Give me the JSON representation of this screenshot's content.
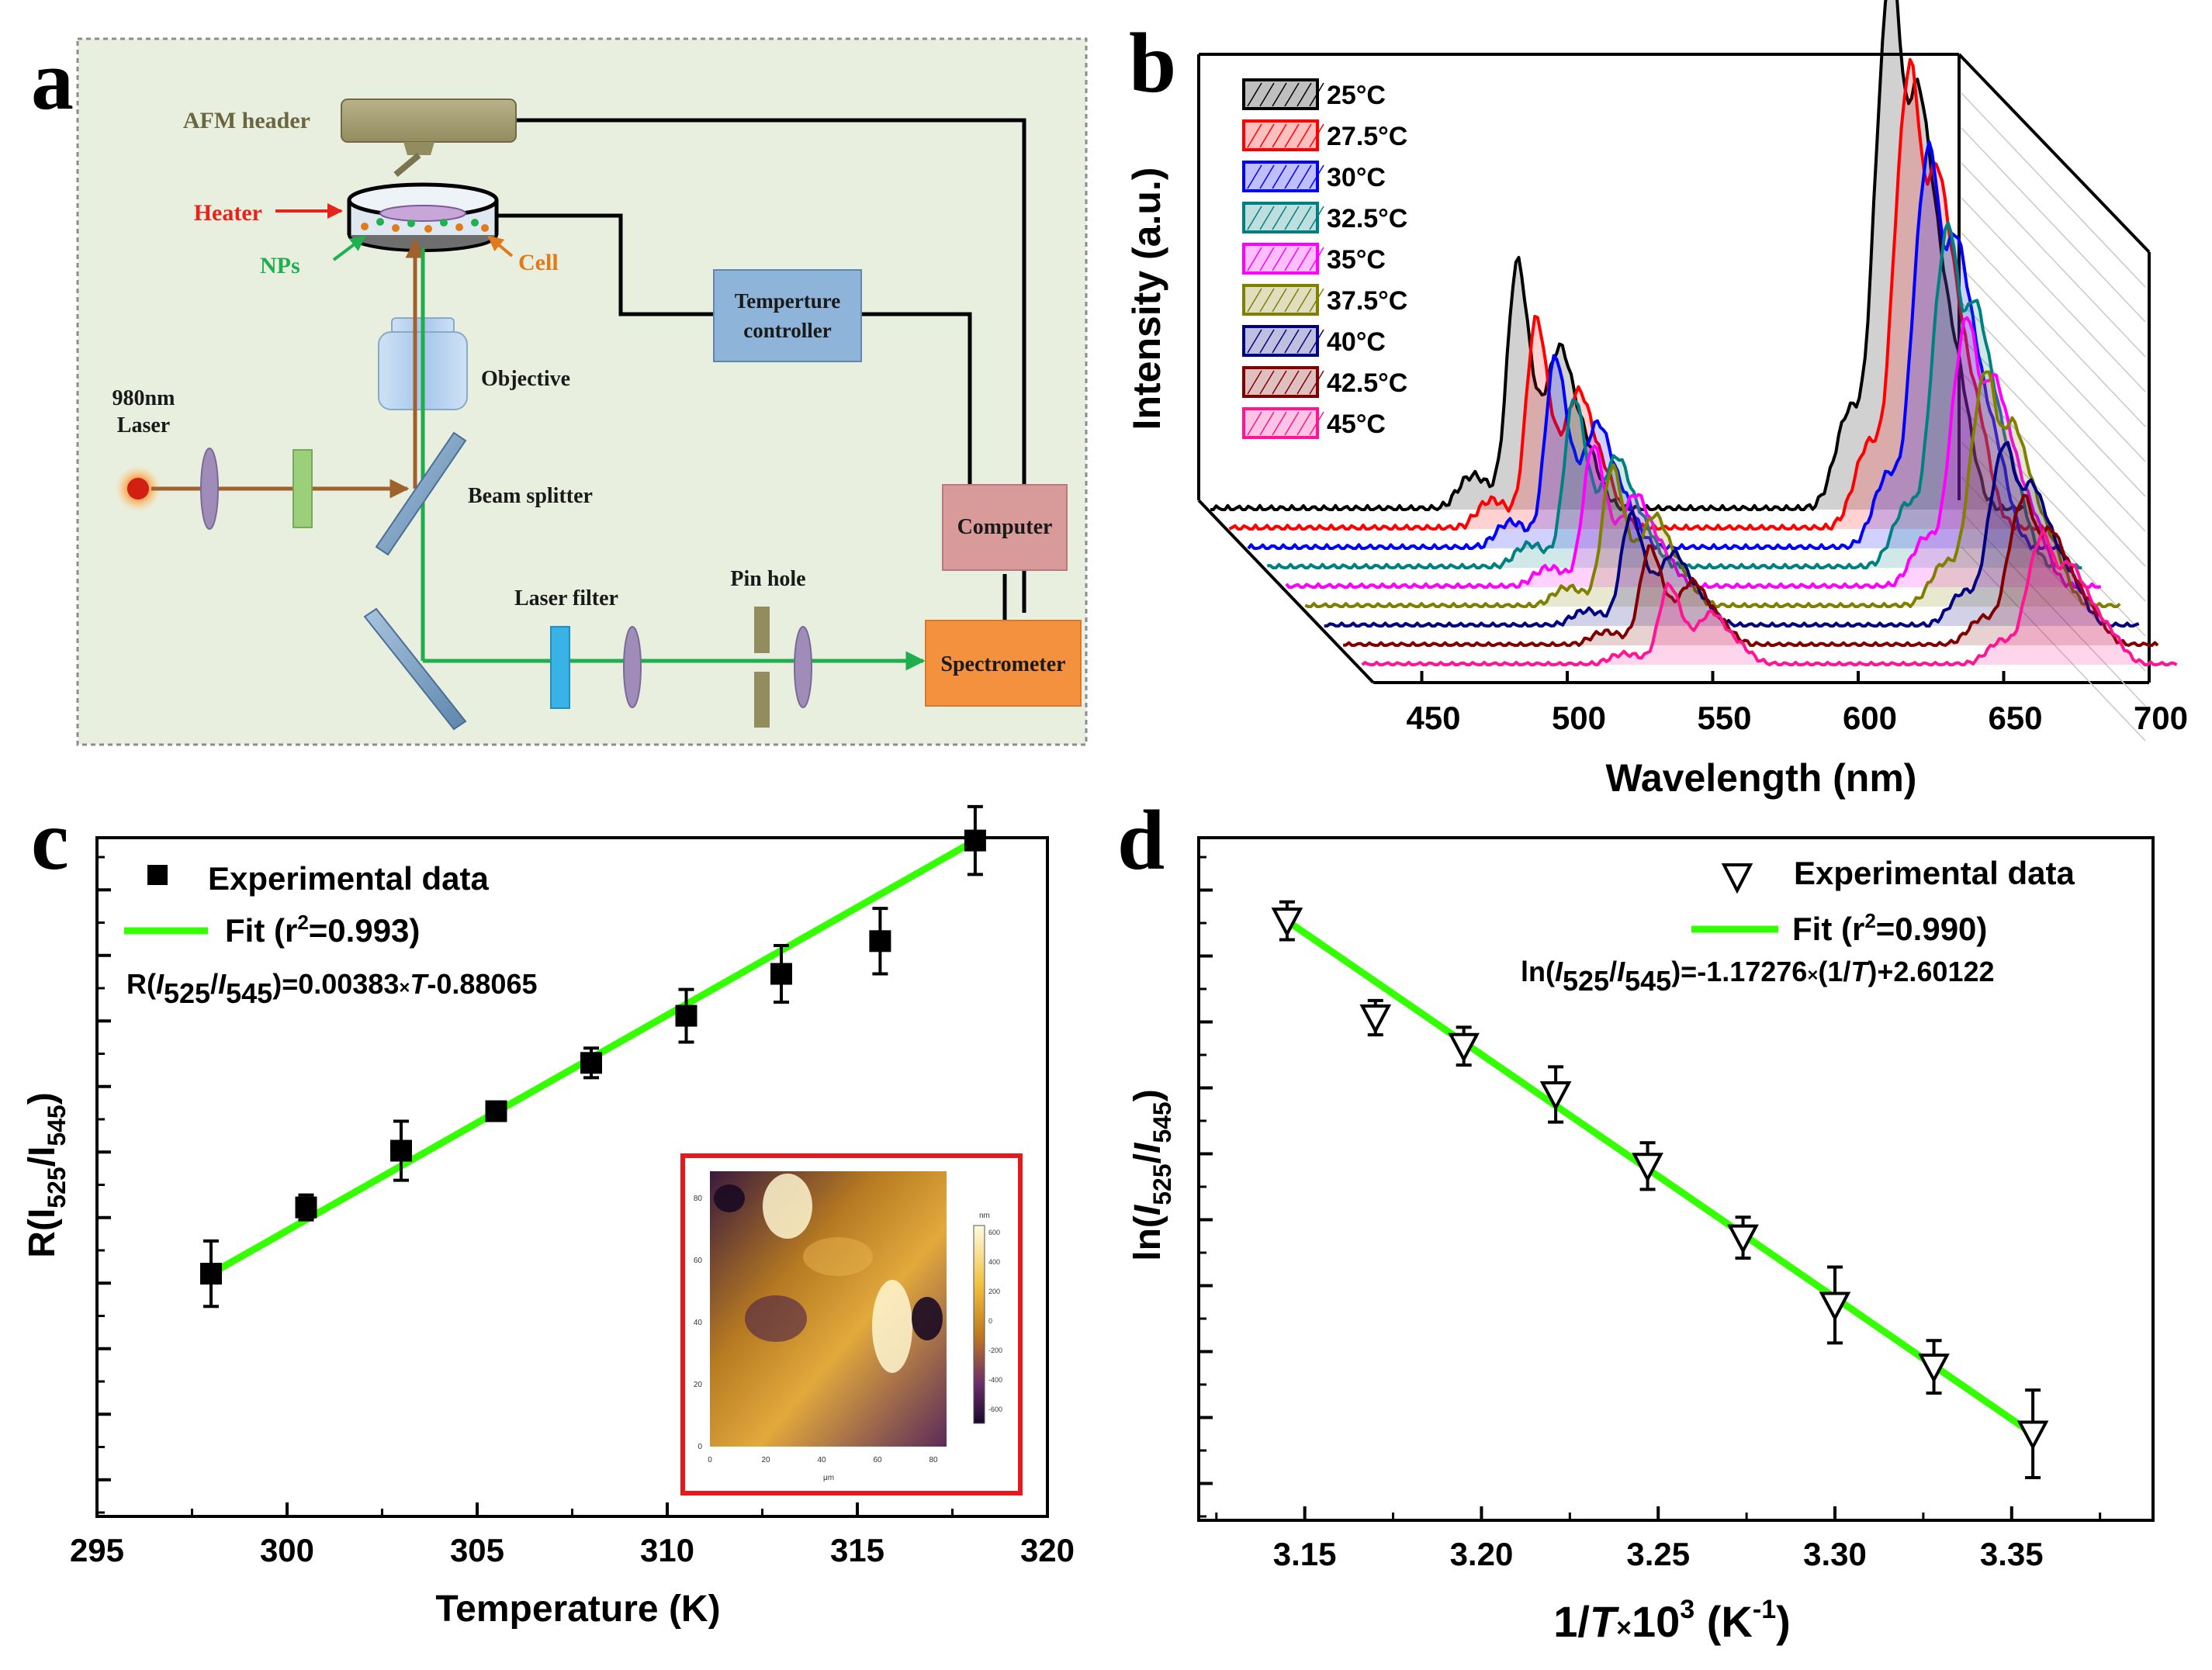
{
  "panel_letters": {
    "a": "a",
    "b": "b",
    "c": "c",
    "d": "d"
  },
  "colors": {
    "schematic_bg": "#e9efdf",
    "green_beam": "#1fae4b",
    "brown_beam": "#a0622d",
    "fit_line": "#33ff00",
    "heater_red": "#e8231b",
    "nps_green": "#1fb14f",
    "cell_orange": "#e07a1b",
    "inset_border": "#e41a1c"
  },
  "schematic": {
    "afm_header": "AFM header",
    "heater": "Heater",
    "nps": "NPs",
    "cell": "Cell",
    "temp_controller_line1": "Temperture",
    "temp_controller_line2": "controller",
    "objective": "Objective",
    "laser_line1": "980nm",
    "laser_line2": "Laser",
    "beam_splitter": "Beam splitter",
    "computer": "Computer",
    "laser_filter": "Laser filter",
    "pin_hole": "Pin hole",
    "spectrometer": "Spectrometer"
  },
  "chart_data": [
    {
      "panel": "b",
      "type": "line",
      "title": "",
      "xlabel": "Wavelength (nm)",
      "ylabel": "Intensity (a.u.)",
      "xlim": [
        420,
        700
      ],
      "xticks": [
        "450",
        "500",
        "550",
        "600",
        "650",
        "700"
      ],
      "waterfall": true,
      "series": [
        {
          "name": "25°C",
          "color": "#000000",
          "peak_green_nm": 525,
          "peak_red_nm": 655,
          "green_rel": 0.56,
          "red_rel": 1.0
        },
        {
          "name": "27.5°C",
          "color": "#ff0000",
          "peak_green_nm": 525,
          "peak_red_nm": 655,
          "green_rel": 0.5,
          "red_rel": 0.9
        },
        {
          "name": "30°C",
          "color": "#0000ff",
          "peak_green_nm": 525,
          "peak_red_nm": 655,
          "green_rel": 0.48,
          "red_rel": 0.82
        },
        {
          "name": "32.5°C",
          "color": "#008080",
          "peak_green_nm": 525,
          "peak_red_nm": 655,
          "green_rel": 0.45,
          "red_rel": 0.74
        },
        {
          "name": "35°C",
          "color": "#ff00ff",
          "peak_green_nm": 525,
          "peak_red_nm": 655,
          "green_rel": 0.4,
          "red_rel": 0.62
        },
        {
          "name": "37.5°C",
          "color": "#808000",
          "peak_green_nm": 525,
          "peak_red_nm": 655,
          "green_rel": 0.42,
          "red_rel": 0.58
        },
        {
          "name": "40°C",
          "color": "#000080",
          "peak_green_nm": 525,
          "peak_red_nm": 655,
          "green_rel": 0.36,
          "red_rel": 0.48
        },
        {
          "name": "42.5°C",
          "color": "#800000",
          "peak_green_nm": 525,
          "peak_red_nm": 655,
          "green_rel": 0.34,
          "red_rel": 0.42
        },
        {
          "name": "45°C",
          "color": "#ff1493",
          "peak_green_nm": 525,
          "peak_red_nm": 655,
          "green_rel": 0.3,
          "red_rel": 0.4
        }
      ]
    },
    {
      "panel": "c",
      "type": "scatter",
      "title": "",
      "xlabel": "Temperature (K)",
      "ylabel_main": "R(I",
      "ylabel_sub1": "525",
      "ylabel_mid": "/I",
      "ylabel_sub2": "545",
      "ylabel_end": ")",
      "xlim": [
        295,
        320
      ],
      "ylim": [
        0.2,
        0.37
      ],
      "xticks": [
        "295",
        "300",
        "305",
        "310",
        "315",
        "320"
      ],
      "legend_marker": "Experimental data",
      "legend_fit": "Fit (r",
      "legend_fit_sup": "2",
      "legend_fit_end": "=0.993)",
      "equation_a": "R(",
      "equation_b": "I",
      "equation_c": "525",
      "equation_d": "/",
      "equation_e": "I",
      "equation_f": "545",
      "equation_g": ")=0.00383",
      "equation_h": "×",
      "equation_i": "T",
      "equation_j": "-0.88065",
      "fit": {
        "slope": 0.00383,
        "intercept": -0.88065
      },
      "points": [
        {
          "x": 298.0,
          "y": 0.2608,
          "err": 0.0082
        },
        {
          "x": 300.5,
          "y": 0.2774,
          "err": 0.0031
        },
        {
          "x": 303.0,
          "y": 0.2916,
          "err": 0.0074
        },
        {
          "x": 305.5,
          "y": 0.3015,
          "err": 0.0022
        },
        {
          "x": 308.0,
          "y": 0.3136,
          "err": 0.0037
        },
        {
          "x": 310.5,
          "y": 0.3254,
          "err": 0.0066
        },
        {
          "x": 313.0,
          "y": 0.3359,
          "err": 0.0071
        },
        {
          "x": 315.6,
          "y": 0.3441,
          "err": 0.0082
        },
        {
          "x": 318.1,
          "y": 0.3693,
          "err": 0.0085
        }
      ],
      "inset": {
        "x_ticks": [
          "0",
          "20",
          "40",
          "60",
          "80"
        ],
        "y_ticks": [
          "0",
          "20",
          "40",
          "60",
          "80"
        ],
        "x_unit": "μm",
        "scale_unit": "nm",
        "scale_ticks": [
          "600",
          "400",
          "200",
          "0",
          "-200",
          "-400",
          "-600"
        ]
      }
    },
    {
      "panel": "d",
      "type": "scatter",
      "title": "",
      "xlabel_a": "1/",
      "xlabel_b": "T",
      "xlabel_c": "×",
      "xlabel_d": "10",
      "xlabel_e": "3",
      "xlabel_f": " (K",
      "xlabel_g": "-1",
      "xlabel_h": ")",
      "ylabel_a": "ln(",
      "ylabel_b": "I",
      "ylabel_c": "525",
      "ylabel_d": "/",
      "ylabel_e": "I",
      "ylabel_f": "545",
      "ylabel_g": ")",
      "xlim": [
        3.12,
        3.39
      ],
      "ylim": [
        -1.43,
        -1.04
      ],
      "xticks": [
        "3.15",
        "3.20",
        "3.25",
        "3.30",
        "3.35"
      ],
      "legend_marker": "Experimental data",
      "legend_fit": "Fit (r",
      "legend_fit_sup": "2",
      "legend_fit_end": "=0.990)",
      "equation_a": "ln(",
      "equation_b": "I",
      "equation_c": "525",
      "equation_d": "/",
      "equation_e": "I",
      "equation_f": "545",
      "equation_g": ")=-1.17276",
      "equation_h": "×",
      "equation_i": "(1/",
      "equation_j": "T",
      "equation_k": ")+2.60122",
      "fit": {
        "slope": -1.17276,
        "intercept": 2.60122
      },
      "points": [
        {
          "x": 3.145,
          "y": -1.0875,
          "err": 0.0108
        },
        {
          "x": 3.17,
          "y": -1.1428,
          "err": 0.0098
        },
        {
          "x": 3.195,
          "y": -1.1591,
          "err": 0.0108
        },
        {
          "x": 3.221,
          "y": -1.1867,
          "err": 0.0158
        },
        {
          "x": 3.247,
          "y": -1.2276,
          "err": 0.0133
        },
        {
          "x": 3.274,
          "y": -1.2685,
          "err": 0.0117
        },
        {
          "x": 3.3,
          "y": -1.307,
          "err": 0.0217
        },
        {
          "x": 3.328,
          "y": -1.3423,
          "err": 0.015
        },
        {
          "x": 3.356,
          "y": -1.3806,
          "err": 0.025
        }
      ]
    }
  ]
}
